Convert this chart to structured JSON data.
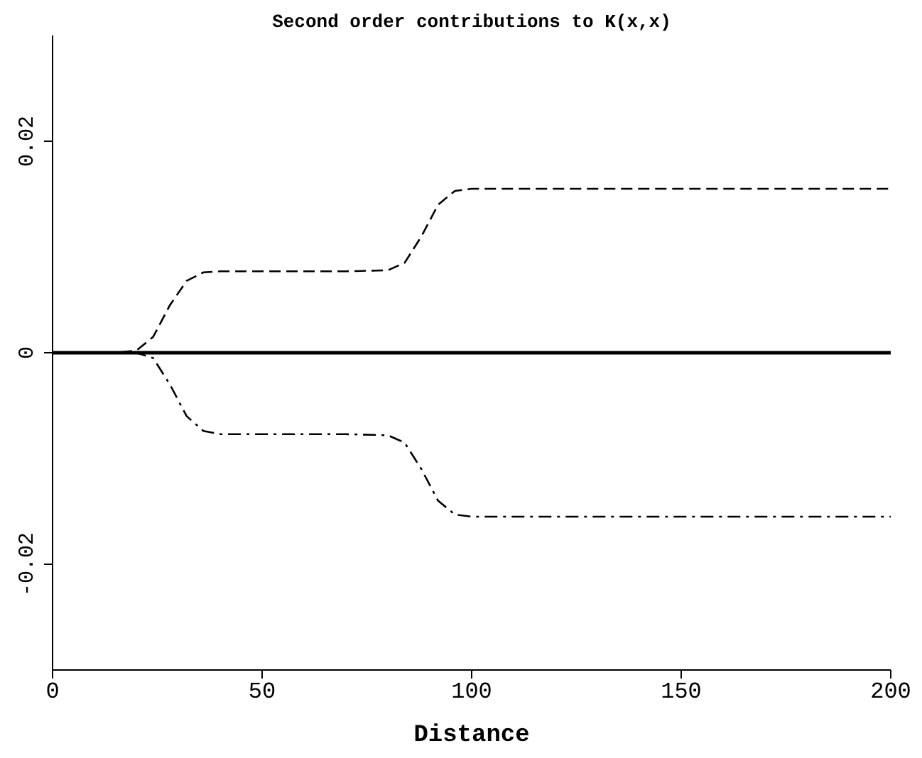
{
  "chart_data": {
    "type": "line",
    "title": "Second order contributions to K(x,x)",
    "xlabel": "Distance",
    "xlim": [
      0,
      200
    ],
    "xticks": [
      0,
      50,
      100,
      150,
      200
    ],
    "ylim": [
      -0.03,
      0.03
    ],
    "yticks": [
      -0.02,
      0,
      0.02
    ],
    "marker": "none",
    "series": [
      {
        "color": "#000000",
        "line_style": "solid",
        "x": [
          0,
          200
        ],
        "values": [
          0,
          0
        ]
      },
      {
        "color": "#000000",
        "line_style": "dashed",
        "x": [
          0,
          15,
          20,
          24,
          28,
          32,
          36,
          40,
          50,
          60,
          70,
          80,
          84,
          88,
          92,
          96,
          100,
          120,
          150,
          200
        ],
        "values": [
          0,
          0,
          0.0002,
          0.0015,
          0.0045,
          0.0068,
          0.0076,
          0.0077,
          0.0077,
          0.0077,
          0.0077,
          0.0078,
          0.0085,
          0.011,
          0.014,
          0.0153,
          0.0155,
          0.0155,
          0.0155,
          0.0155
        ]
      },
      {
        "color": "#000000",
        "line_style": "dashdot",
        "x": [
          0,
          15,
          20,
          24,
          28,
          32,
          36,
          40,
          50,
          60,
          70,
          80,
          84,
          88,
          92,
          96,
          100,
          120,
          150,
          200
        ],
        "values": [
          0,
          0,
          0,
          -0.0005,
          -0.003,
          -0.006,
          -0.0074,
          -0.0077,
          -0.0077,
          -0.0077,
          -0.0077,
          -0.0078,
          -0.0085,
          -0.011,
          -0.014,
          -0.0153,
          -0.0155,
          -0.0155,
          -0.0155,
          -0.0155
        ]
      }
    ]
  }
}
